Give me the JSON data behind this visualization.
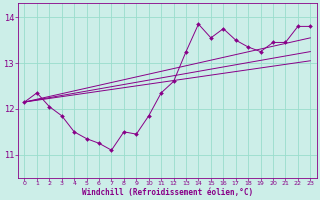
{
  "xlabel": "Windchill (Refroidissement éolien,°C)",
  "bg_color": "#cceee8",
  "line_color": "#880088",
  "grid_color": "#99ddcc",
  "xlim": [
    -0.5,
    23.5
  ],
  "ylim": [
    10.5,
    14.3
  ],
  "yticks": [
    11,
    12,
    13,
    14
  ],
  "xticks": [
    0,
    1,
    2,
    3,
    4,
    5,
    6,
    7,
    8,
    9,
    10,
    11,
    12,
    13,
    14,
    15,
    16,
    17,
    18,
    19,
    20,
    21,
    22,
    23
  ],
  "curve_x": [
    0,
    1,
    2,
    3,
    4,
    5,
    6,
    7,
    8,
    9,
    10,
    11,
    12,
    13,
    14,
    15,
    16,
    17,
    18,
    19,
    20,
    21,
    22,
    23
  ],
  "curve_y": [
    12.15,
    12.35,
    12.05,
    11.85,
    11.5,
    11.35,
    11.25,
    11.1,
    11.5,
    11.45,
    11.85,
    12.35,
    12.6,
    13.25,
    13.85,
    13.55,
    13.75,
    13.5,
    13.35,
    13.25,
    13.45,
    13.45,
    13.8,
    13.8
  ],
  "reg_lines": [
    {
      "x": [
        0,
        23
      ],
      "y": [
        12.15,
        13.55
      ]
    },
    {
      "x": [
        0,
        23
      ],
      "y": [
        12.15,
        13.25
      ]
    },
    {
      "x": [
        0,
        23
      ],
      "y": [
        12.15,
        13.05
      ]
    }
  ],
  "xlabel_fontsize": 5.5,
  "ytick_fontsize": 6.0,
  "xtick_fontsize": 4.5
}
